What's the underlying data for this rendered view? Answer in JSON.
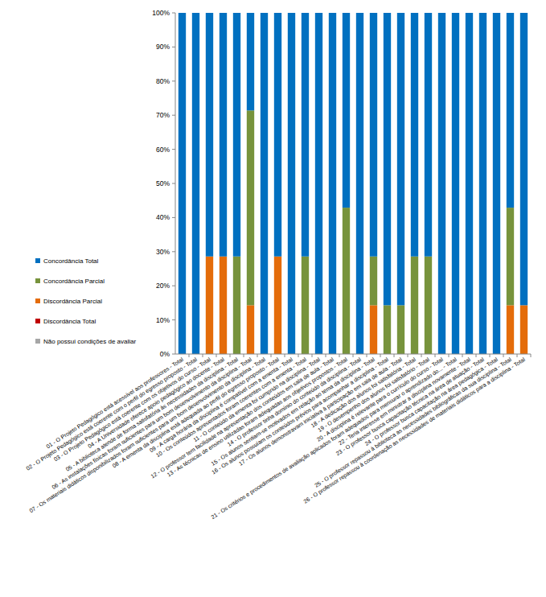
{
  "chart_data": {
    "type": "bar",
    "stacked": true,
    "legend": "left",
    "grid": false,
    "ylim": [
      0,
      100
    ],
    "yticks": [
      {
        "value": 0,
        "label": "0%"
      },
      {
        "value": 10,
        "label": "10%"
      },
      {
        "value": 20,
        "label": "20%"
      },
      {
        "value": 30,
        "label": "30%"
      },
      {
        "value": 40,
        "label": "40%"
      },
      {
        "value": 50,
        "label": "50%"
      },
      {
        "value": 60,
        "label": "60%"
      },
      {
        "value": 70,
        "label": "70%"
      },
      {
        "value": 80,
        "label": "80%"
      },
      {
        "value": 90,
        "label": "90%"
      },
      {
        "value": 100,
        "label": "100%"
      }
    ],
    "categories": [
      "01 - O Projeto Pedagógico está acessível aos professores - Total",
      "02 - O Projeto Pedagógico está coerente com o perfil do egresso proposto - Total",
      "03 - O Projeto Pedagógico está coerente com os objetivos do curso - Total",
      "04 - A Universidade oferece apoio pedagógico ao docente - Total",
      "05 - A biblioteca atende de forma satisfatória às necessidades da disciplina - Total",
      "06 - As instalações físicas foram suficientes para um bom desenvolvimento da disciplina - Total",
      "07 - Os materiais didáticos disponibilizados foram suficientes para um bom desenvolvimento da disciplina - Total",
      "08 - A ementa da disciplina está adequada ao perfil do egresso proposto - Total",
      "09 - A carga horária da disciplina é compatível com a ementa - Total",
      "10 - Os conteúdos apresentados foram coerentes com a ementa - Total",
      "11 - O conteúdo da ementa foi cumprido na disciplina - Total",
      "12 - O professor tem facilidade na apresentação dos conteúdos em sala de aula - Total",
      "13 - As técnicas de ensino utilizadas foram adequadas aos objetivos propostos - Total",
      "14 - O professor tinha domínio do conteúdo da disciplina - Total",
      "15 - Os alunos sentiam-se motivados em relação ao tema da disciplina - Total",
      "16 - Os alunos possuíam os conteúdos prévios para acompanhar a disciplina - Total",
      "17 - Os alunos demonstravam iniciativa à participação em sala de aula - Total",
      "18 - A dedicação dos alunos foi satisfatória - Total",
      "19 - O desempenho dos alunos foi satisfatório - Total",
      "20 - A disciplina é relevante para o currículo do curso - Total",
      "21 - Os critérios e procedimentos de avaliação aplicados foram adequados para mensurar o aprendizado do... - Total",
      "22 - Teria interesse em ministrar a disciplina novamente - Total",
      "23 - O professor busca capacitação técnica na área de atuação - Total",
      "24 - O professor busca capacitação na área pedagógica - Total",
      "25 - O professor repassou à biblioteca as necessidades bibliográficas da sua disciplina - Total",
      "26 - O professor repassou à coordenação as necessidades de materiais didáticos para a disciplina - Total"
    ],
    "series": [
      {
        "name": "Concordância Total",
        "color": "#0070c0",
        "values": [
          100,
          100,
          71.4,
          71.4,
          71.4,
          28.6,
          100,
          71.4,
          100,
          71.4,
          100,
          100,
          57.1,
          100,
          71.4,
          85.7,
          85.7,
          71.4,
          71.4,
          100,
          100,
          100,
          100,
          100,
          57.1,
          85.7
        ]
      },
      {
        "name": "Concordância Parcial",
        "color": "#77933c",
        "values": [
          0,
          0,
          0,
          0,
          28.6,
          57.1,
          0,
          0,
          0,
          28.6,
          0,
          0,
          42.9,
          0,
          14.3,
          14.3,
          14.3,
          28.6,
          28.6,
          0,
          0,
          0,
          0,
          0,
          28.6,
          0
        ]
      },
      {
        "name": "Discordância Parcial",
        "color": "#e46c0a",
        "values": [
          0,
          0,
          28.6,
          28.6,
          0,
          14.3,
          0,
          28.6,
          0,
          0,
          0,
          0,
          0,
          0,
          14.3,
          0,
          0,
          0,
          0,
          0,
          0,
          0,
          0,
          0,
          14.3,
          14.3
        ]
      },
      {
        "name": "Discordância Total",
        "color": "#c00000",
        "values": [
          0,
          0,
          0,
          0,
          0,
          0,
          0,
          0,
          0,
          0,
          0,
          0,
          0,
          0,
          0,
          0,
          0,
          0,
          0,
          0,
          0,
          0,
          0,
          0,
          0,
          0
        ]
      },
      {
        "name": "Não possui condições de avaliar",
        "color": "#a6a6a6",
        "values": [
          0,
          0,
          0,
          0,
          0,
          0,
          0,
          0,
          0,
          0,
          0,
          0,
          0,
          0,
          0,
          0,
          0,
          0,
          0,
          0,
          0,
          0,
          0,
          0,
          0,
          0
        ]
      }
    ]
  }
}
